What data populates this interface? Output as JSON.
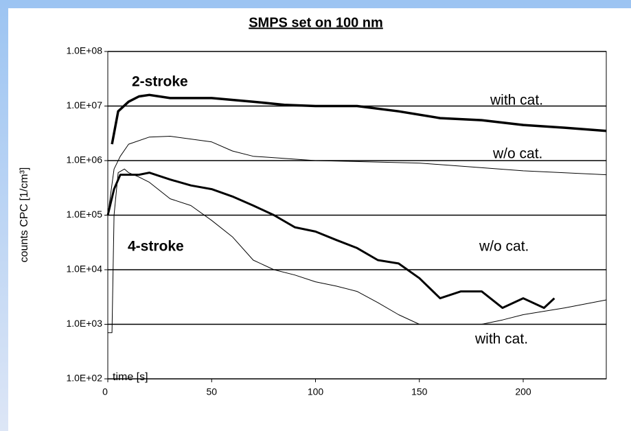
{
  "chart_data": {
    "type": "line",
    "title": "SMPS set on 100 nm",
    "ylabel": "counts CPC [1/cm³]",
    "xlabel": "time [s]",
    "yscale": "log",
    "grid": true,
    "xlim": [
      0,
      240
    ],
    "ylim": [
      100,
      100000000
    ],
    "xticks": [
      0,
      50,
      100,
      150,
      200
    ],
    "yticks": [
      {
        "value": 100,
        "label": "1.0E+02"
      },
      {
        "value": 1000,
        "label": "1.0E+03"
      },
      {
        "value": 10000,
        "label": "1.0E+04"
      },
      {
        "value": 100000,
        "label": "1.0E+05"
      },
      {
        "value": 1000000,
        "label": "1.0E+06"
      },
      {
        "value": 10000000,
        "label": "1.0E+07"
      },
      {
        "value": 100000000,
        "label": "1.0E+08"
      }
    ],
    "annotations": [
      {
        "text": "2-stroke",
        "bold": true
      },
      {
        "text": "with cat."
      },
      {
        "text": "w/o cat."
      },
      {
        "text": "4-stroke",
        "bold": true
      },
      {
        "text": "w/o cat."
      },
      {
        "text": "with cat."
      }
    ],
    "series": [
      {
        "color": "#000000",
        "width": 3.5,
        "x": [
          2,
          5,
          10,
          15,
          20,
          30,
          50,
          70,
          85,
          100,
          120,
          140,
          160,
          180,
          200,
          220,
          240
        ],
        "values": [
          2000000,
          8000000,
          12000000,
          15000000,
          16000000,
          14000000,
          14000000,
          12000000,
          10500000,
          10000000,
          10000000,
          8000000,
          6000000,
          5500000,
          4500000,
          4000000,
          3500000
        ]
      },
      {
        "color": "#000000",
        "width": 1,
        "x": [
          0,
          3,
          6,
          10,
          20,
          30,
          50,
          60,
          70,
          100,
          150,
          200,
          240
        ],
        "values": [
          100000,
          700000,
          1200000,
          2000000,
          2700000,
          2800000,
          2200000,
          1500000,
          1200000,
          1000000,
          900000,
          650000,
          550000
        ]
      },
      {
        "color": "#000000",
        "width": 3,
        "x": [
          0,
          3,
          6,
          15,
          20,
          30,
          40,
          50,
          60,
          70,
          80,
          90,
          100,
          110,
          120,
          130,
          140,
          150,
          160,
          170,
          180,
          190,
          200,
          210,
          215
        ],
        "values": [
          100000,
          300000,
          550000,
          550000,
          600000,
          450000,
          350000,
          300000,
          220000,
          150000,
          100000,
          60000,
          50000,
          35000,
          25000,
          15000,
          13000,
          7000,
          3000,
          4000,
          4000,
          2000,
          3000,
          2000,
          3000
        ]
      },
      {
        "color": "#000000",
        "width": 1,
        "x": [
          0,
          2,
          3,
          5,
          8,
          10,
          15,
          20,
          30,
          40,
          50,
          60,
          70,
          80,
          90,
          100,
          110,
          120,
          130,
          140,
          150,
          160,
          170,
          180,
          190,
          200,
          220,
          240
        ],
        "values": [
          700,
          700,
          100000,
          600000,
          700000,
          600000,
          500000,
          400000,
          200000,
          150000,
          80000,
          40000,
          15000,
          10000,
          8000,
          6000,
          5000,
          4000,
          2500,
          1500,
          1000,
          1000,
          1000,
          1000,
          1200,
          1500,
          2000,
          2800
        ]
      }
    ]
  }
}
